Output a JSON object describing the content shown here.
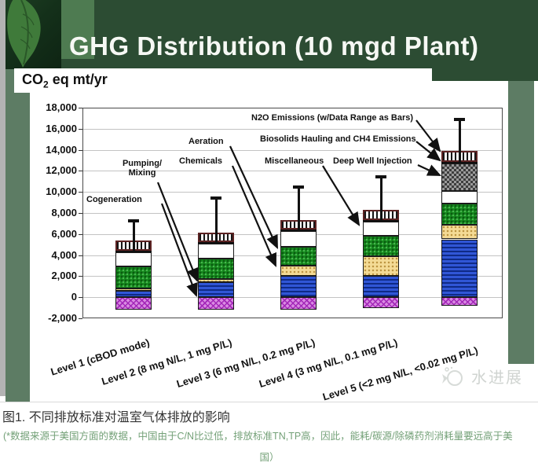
{
  "slide": {
    "title": "GHG Distribution (10 mgd Plant)",
    "unit_prefix": "CO",
    "unit_sub": "2",
    "unit_suffix": " eq mt/yr",
    "watermark": "水进展"
  },
  "caption": {
    "figure_label": "图1.  不同排放标准对温室气体排放的影响",
    "note_line1": "(*数据来源于美国方面的数据，中国由于C/N比过低，排放标准TN,TP高，因此，能耗/碳源/除磷药剂消耗量要远高于美",
    "note_line2": "国）"
  },
  "chart_data": {
    "type": "bar",
    "subtype": "stacked-bar-with-error-bars",
    "title": "GHG Distribution (10 mgd Plant)",
    "ylabel": "CO2 eq mt/yr",
    "xlabel": "",
    "ylim": [
      -2000,
      18000
    ],
    "ytick_step": 2000,
    "grid": true,
    "categories": [
      "Level 1 (cBOD mode)",
      "Level 2 (8 mg N/L, 1 mg P/L)",
      "Level 3 (6 mg N/L, 0.2 mg P/L)",
      "Level 4 (3 mg N/L, 0.1 mg P/L)",
      "Level 5 (<2 mg N/L, <0.02 mg P/L)"
    ],
    "series": [
      {
        "name": "Cogeneration",
        "values": [
          -1150,
          -1150,
          -1200,
          -1050,
          -800
        ]
      },
      {
        "name": "Pumping/Mixing",
        "values": [
          600,
          1400,
          2000,
          2000,
          5500
        ]
      },
      {
        "name": "Chemicals",
        "values": [
          250,
          300,
          1000,
          1900,
          1400
        ]
      },
      {
        "name": "Aeration",
        "values": [
          2050,
          2000,
          1800,
          1900,
          2000
        ]
      },
      {
        "name": "Miscellaneous",
        "values": [
          1350,
          1400,
          1500,
          1400,
          1200
        ]
      },
      {
        "name": "Deep Well Injection",
        "values": [
          0,
          0,
          0,
          0,
          2600
        ]
      },
      {
        "name": "Biosolids Hauling and CH4 Emissions",
        "values": [
          150,
          150,
          150,
          150,
          150
        ]
      },
      {
        "name": "N2O Emissions (w/Data Range as Bars)",
        "values": [
          1000,
          850,
          850,
          950,
          1050
        ]
      }
    ],
    "bar_totals": [
      5400,
      6100,
      7300,
      8300,
      13900
    ],
    "error_bar_max": [
      7400,
      9600,
      10600,
      11600,
      17000
    ],
    "callouts": {
      "cogeneration": "Cogeneration",
      "pumping": "Pumping/\nMixing",
      "chemicals": "Chemicals",
      "aeration": "Aeration",
      "miscellaneous": "Miscellaneous",
      "deep_well": "Deep Well Injection",
      "biosolids": "Biosolids Hauling and CH4 Emissions",
      "n2o": "N2O Emissions (w/Data Range as Bars)"
    },
    "colors": {
      "cogeneration": "#d98ae2",
      "pumping": "#3056d6",
      "chemicals": "#f4db95",
      "aeration": "#178a1f",
      "miscellaneous": "#ffffff",
      "deep_well": "#6f6f6f",
      "biosolids": "#101010",
      "n2o_stripe": "#161616"
    }
  }
}
